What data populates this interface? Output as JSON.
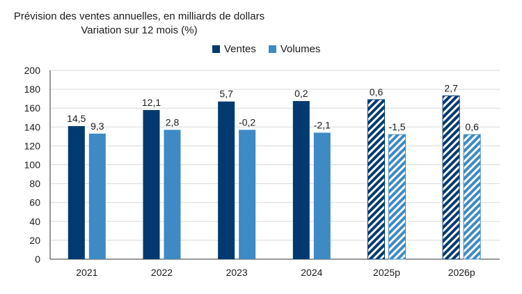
{
  "title": {
    "line1": "Prévision des ventes annuelles, en milliards de dollars",
    "line2": "Variation sur 12 mois (%)"
  },
  "colors": {
    "ventes": "#003a70",
    "volumes": "#3d8ac4",
    "grid": "#d9d9d9",
    "axis": "#333333"
  },
  "chart_data": {
    "type": "bar",
    "categories": [
      "2021",
      "2022",
      "2023",
      "2024",
      "2025p",
      "2026p"
    ],
    "series": [
      {
        "name": "Ventes",
        "values": [
          141,
          158,
          167,
          167.5,
          169,
          173
        ],
        "labels": [
          "14,5",
          "12,1",
          "5,7",
          "0,2",
          "0,6",
          "2,7"
        ],
        "hatched": [
          false,
          false,
          false,
          false,
          true,
          true
        ]
      },
      {
        "name": "Volumes",
        "values": [
          133,
          137,
          137,
          134,
          132,
          132
        ],
        "labels": [
          "9,3",
          "2,8",
          "-0,2",
          "-2,1",
          "-1,5",
          "0,6"
        ],
        "hatched": [
          false,
          false,
          false,
          false,
          true,
          true
        ]
      }
    ],
    "ylim": [
      0,
      200
    ],
    "yticks": [
      "0",
      "20",
      "40",
      "60",
      "80",
      "100",
      "120",
      "140",
      "160",
      "180",
      "200"
    ],
    "grid": true,
    "legend_position": "top-center"
  }
}
